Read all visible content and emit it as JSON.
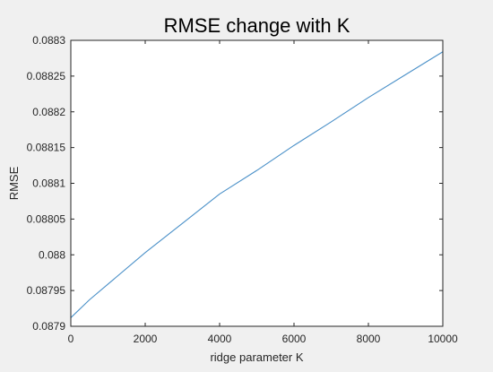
{
  "chart_data": {
    "type": "line",
    "title": "RMSE change with K",
    "xlabel": "ridge parameter K",
    "ylabel": "RMSE",
    "xlim": [
      0,
      10000
    ],
    "ylim": [
      0.0879,
      0.0883
    ],
    "xticks": [
      0,
      2000,
      4000,
      6000,
      8000,
      10000
    ],
    "xtick_labels": [
      "0",
      "2000",
      "4000",
      "6000",
      "8000",
      "10000"
    ],
    "yticks": [
      0.0879,
      0.08795,
      0.088,
      0.08805,
      0.0881,
      0.08815,
      0.0882,
      0.08825,
      0.0883
    ],
    "ytick_labels": [
      "0.0879",
      "0.08795",
      "0.088",
      "0.08805",
      "0.0881",
      "0.08815",
      "0.0882",
      "0.08825",
      "0.0883"
    ],
    "grid": false,
    "series": [
      {
        "color": "#4a90c8",
        "x": [
          0,
          500,
          1000,
          2000,
          3000,
          4000,
          5000,
          6000,
          7000,
          8000,
          9000,
          10000
        ],
        "y": [
          0.087912,
          0.087937,
          0.087959,
          0.088003,
          0.088044,
          0.088085,
          0.088118,
          0.088153,
          0.088186,
          0.08822,
          0.088252,
          0.088284
        ]
      }
    ]
  }
}
